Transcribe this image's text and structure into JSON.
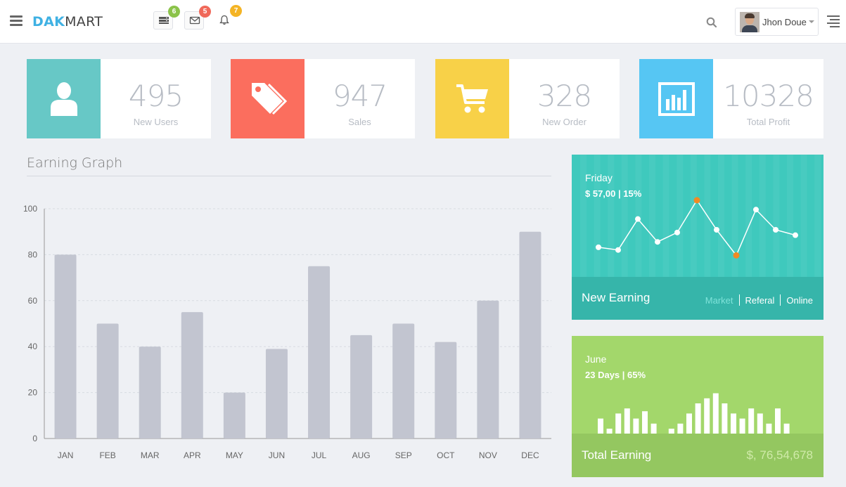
{
  "header": {
    "logo_bold": "DAK",
    "logo_rest": "MART",
    "icons": [
      {
        "icon": "server-icon",
        "badge": "6",
        "badge_color": "#8bc34a"
      },
      {
        "icon": "mail-icon",
        "badge": "5",
        "badge_color": "#f0695a"
      },
      {
        "icon": "bell-icon",
        "badge": "7",
        "badge_color": "#f4b425"
      }
    ],
    "user_name": "Jhon Doue"
  },
  "stats": [
    {
      "value": "495",
      "label": "New Users",
      "color": "#67c8c6",
      "icon": "user-icon"
    },
    {
      "value": "947",
      "label": "Sales",
      "color": "#fb6e5e",
      "icon": "tag-icon"
    },
    {
      "value": "328",
      "label": "New Order",
      "color": "#f8d148",
      "icon": "cart-icon"
    },
    {
      "value": "10328",
      "label": "Total Profit",
      "color": "#56c6f3",
      "icon": "bar-chart-icon"
    }
  ],
  "earning_graph": {
    "title": "Earning Graph"
  },
  "chart_data": [
    {
      "type": "bar",
      "categories": [
        "JAN",
        "FEB",
        "MAR",
        "APR",
        "MAY",
        "JUN",
        "JUL",
        "AUG",
        "SEP",
        "OCT",
        "NOV",
        "DEC"
      ],
      "values": [
        80,
        50,
        40,
        55,
        20,
        39,
        75,
        45,
        50,
        42,
        60,
        90
      ],
      "ylim": [
        0,
        100
      ],
      "yticks": [
        "0",
        "20",
        "40",
        "60",
        "80",
        "100"
      ],
      "grid": true,
      "bar_color": "#c2c5d0"
    },
    {
      "type": "line",
      "values": [
        52,
        50,
        73,
        56,
        63,
        87,
        65,
        46,
        80,
        65,
        61
      ],
      "highlighted_indices": [
        5,
        7
      ],
      "ylim": [
        30,
        100
      ]
    },
    {
      "type": "bar",
      "values": [
        28,
        10,
        37,
        46,
        28,
        41,
        19,
        0,
        10,
        19,
        37,
        55,
        64,
        73,
        55,
        37,
        28,
        46,
        37,
        19,
        46,
        19
      ],
      "ylim": [
        0,
        100
      ]
    }
  ],
  "new_earning": {
    "day": "Friday",
    "summary": "$ 57,00 | 15%",
    "title": "New Earning",
    "tabs": [
      "Market",
      "Referal",
      "Online"
    ],
    "active_tab_color": "#7fe3da"
  },
  "total_earning": {
    "month": "June",
    "summary": "23 Days | 65%",
    "title": "Total Earning",
    "amount": "$, 76,54,678"
  }
}
